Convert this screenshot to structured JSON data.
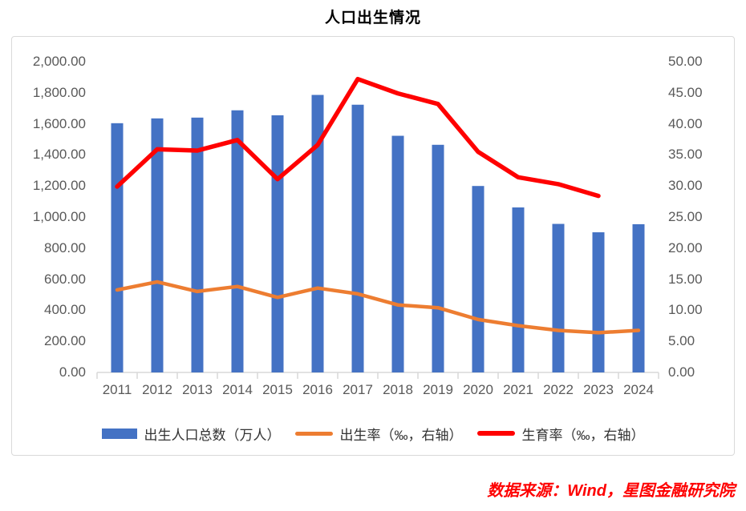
{
  "title": "人口出生情况",
  "source": "数据来源：Wind，星图金融研究院",
  "colors": {
    "bar_blue": "#4472C4",
    "line_orange": "#ED7D31",
    "line_red": "#FF0000",
    "axis_text": "#595959",
    "axis_line": "#d9d9d9",
    "source_red": "#FE0000"
  },
  "chart_data": {
    "type": "bar",
    "subtype": "combo-bar-line",
    "title": "人口出生情况",
    "categories": [
      "2011",
      "2012",
      "2013",
      "2014",
      "2015",
      "2016",
      "2017",
      "2018",
      "2019",
      "2020",
      "2021",
      "2022",
      "2023",
      "2024"
    ],
    "series": [
      {
        "name": "出生人口总数（万人）",
        "type": "bar",
        "axis": "left",
        "color": "#4472C4",
        "values": [
          1604,
          1635,
          1640,
          1687,
          1655,
          1786,
          1723,
          1523,
          1465,
          1200,
          1062,
          956,
          902,
          954
        ]
      },
      {
        "name": "出生率（‰，右轴）",
        "type": "line",
        "axis": "right",
        "color": "#ED7D31",
        "values": [
          13.27,
          14.57,
          13.03,
          13.83,
          12.07,
          13.57,
          12.64,
          10.86,
          10.41,
          8.52,
          7.52,
          6.77,
          6.39,
          6.77
        ]
      },
      {
        "name": "生育率（‰，右轴）",
        "type": "line",
        "axis": "right",
        "color": "#FF0000",
        "values": [
          29.9,
          35.9,
          35.7,
          37.4,
          31.1,
          36.6,
          47.2,
          44.9,
          43.2,
          35.5,
          31.4,
          30.3,
          28.4,
          null
        ]
      }
    ],
    "left_axis": {
      "min": 0,
      "max": 2000,
      "step": 200,
      "labels": [
        "0.00",
        "200.00",
        "400.00",
        "600.00",
        "800.00",
        "1,000.00",
        "1,200.00",
        "1,400.00",
        "1,600.00",
        "1,800.00",
        "2,000.00"
      ]
    },
    "right_axis": {
      "min": 0,
      "max": 50,
      "step": 5,
      "labels": [
        "0.00",
        "5.00",
        "10.00",
        "15.00",
        "20.00",
        "25.00",
        "30.00",
        "35.00",
        "40.00",
        "45.00",
        "50.00"
      ]
    },
    "grid": false,
    "legend_position": "bottom"
  }
}
